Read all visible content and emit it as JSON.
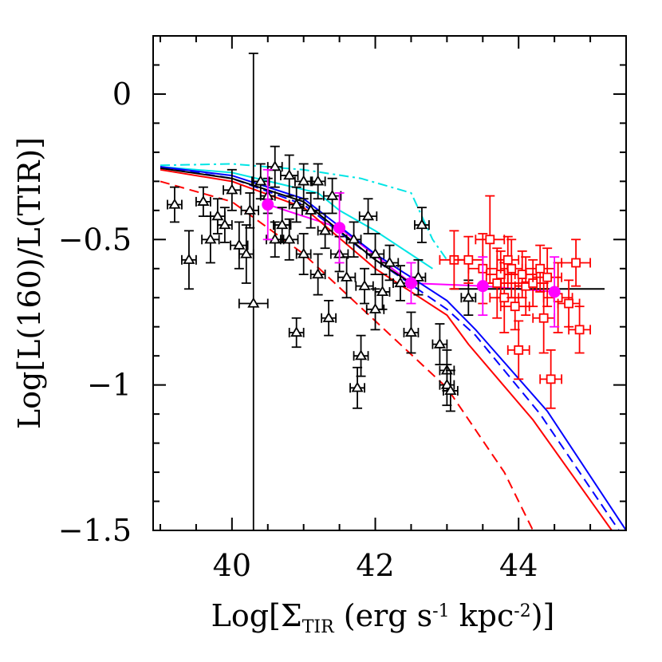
{
  "chart_data": {
    "type": "scatter",
    "xlabel": "Log[Σ_TIR (erg s^-1 kpc^-2)]",
    "xlabel_parts": {
      "pre": "Log[Σ",
      "sub": "TIR",
      "mid1": " (erg s",
      "sup1": "-1",
      "mid2": " kpc",
      "sup2": "-2",
      "post": ")]"
    },
    "ylabel": "Log[L(160)/L(TIR)]",
    "xlim": [
      38.9,
      45.5
    ],
    "ylim": [
      -1.5,
      0.2
    ],
    "x_ticks": [
      40,
      42,
      44
    ],
    "x_tick_labels": [
      "40",
      "42",
      "44"
    ],
    "y_ticks": [
      0,
      -0.5,
      -1,
      -1.5
    ],
    "y_tick_labels": [
      "0",
      "−0.5",
      "−1",
      "−1.5"
    ],
    "grid": false,
    "colors": {
      "black": "#000000",
      "red": "#ff0000",
      "blue": "#0000ff",
      "cyan": "#00e5e5",
      "magenta": "#ff00ff"
    },
    "series": [
      {
        "marker": "triangle",
        "color": "#000000",
        "points": [
          [
            39.2,
            -0.38,
            0.1,
            0.06
          ],
          [
            39.4,
            -0.57,
            0.1,
            0.1
          ],
          [
            39.6,
            -0.37,
            0.1,
            0.05
          ],
          [
            39.7,
            -0.5,
            0.12,
            0.08
          ],
          [
            39.8,
            -0.42,
            0.1,
            0.06
          ],
          [
            39.9,
            -0.45,
            0.1,
            0.06
          ],
          [
            40.0,
            -0.33,
            0.12,
            0.07
          ],
          [
            40.1,
            -0.52,
            0.12,
            0.08
          ],
          [
            40.2,
            -0.55,
            0.1,
            0.1
          ],
          [
            40.25,
            -0.4,
            0.12,
            0.06
          ],
          [
            40.3,
            -0.72,
            0.2,
            0.86
          ],
          [
            40.4,
            -0.3,
            0.12,
            0.06
          ],
          [
            40.5,
            -0.35,
            0.1,
            0.06
          ],
          [
            40.6,
            -0.5,
            0.12,
            0.06
          ],
          [
            40.6,
            -0.25,
            0.1,
            0.07
          ],
          [
            40.7,
            -0.45,
            0.12,
            0.06
          ],
          [
            40.8,
            -0.28,
            0.12,
            0.07
          ],
          [
            40.8,
            -0.5,
            0.12,
            0.07
          ],
          [
            40.9,
            -0.82,
            0.1,
            0.05
          ],
          [
            40.9,
            -0.38,
            0.1,
            0.06
          ],
          [
            41.0,
            -0.3,
            0.12,
            0.06
          ],
          [
            41.0,
            -0.55,
            0.1,
            0.07
          ],
          [
            41.1,
            -0.4,
            0.12,
            0.06
          ],
          [
            41.2,
            -0.62,
            0.1,
            0.07
          ],
          [
            41.2,
            -0.3,
            0.1,
            0.06
          ],
          [
            41.3,
            -0.47,
            0.1,
            0.06
          ],
          [
            41.35,
            -0.77,
            0.1,
            0.06
          ],
          [
            41.4,
            -0.35,
            0.12,
            0.06
          ],
          [
            41.5,
            -0.55,
            0.12,
            0.06
          ],
          [
            41.6,
            -0.63,
            0.12,
            0.07
          ],
          [
            41.7,
            -0.5,
            0.1,
            0.06
          ],
          [
            41.75,
            -1.01,
            0.1,
            0.07
          ],
          [
            41.8,
            -0.9,
            0.1,
            0.07
          ],
          [
            41.85,
            -0.66,
            0.12,
            0.06
          ],
          [
            41.9,
            -0.42,
            0.12,
            0.06
          ],
          [
            42.0,
            -0.74,
            0.12,
            0.07
          ],
          [
            42.0,
            -0.55,
            0.12,
            0.07
          ],
          [
            42.1,
            -0.68,
            0.1,
            0.06
          ],
          [
            42.2,
            -0.58,
            0.12,
            0.06
          ],
          [
            42.35,
            -0.65,
            0.1,
            0.06
          ],
          [
            42.5,
            -0.82,
            0.1,
            0.07
          ],
          [
            42.6,
            -0.63,
            0.1,
            0.06
          ],
          [
            42.65,
            -0.45,
            0.1,
            0.06
          ],
          [
            42.9,
            -0.86,
            0.1,
            0.07
          ],
          [
            43.0,
            -0.95,
            0.1,
            0.07
          ],
          [
            43.0,
            -1.0,
            0.1,
            0.07
          ],
          [
            43.05,
            -1.02,
            0.1,
            0.07
          ],
          [
            43.3,
            -0.7,
            0.1,
            0.06
          ]
        ]
      },
      {
        "marker": "square",
        "color": "#ff0000",
        "points": [
          [
            43.1,
            -0.57,
            0.2,
            0.1
          ],
          [
            43.3,
            -0.57,
            0.2,
            0.08
          ],
          [
            43.5,
            -0.6,
            0.2,
            0.12
          ],
          [
            43.6,
            -0.5,
            0.2,
            0.15
          ],
          [
            43.7,
            -0.65,
            0.15,
            0.12
          ],
          [
            43.75,
            -0.62,
            0.2,
            0.08
          ],
          [
            43.8,
            -0.7,
            0.2,
            0.12
          ],
          [
            43.9,
            -0.6,
            0.15,
            0.1
          ],
          [
            43.95,
            -0.73,
            0.2,
            0.08
          ],
          [
            44.0,
            -0.88,
            0.15,
            0.1
          ],
          [
            44.05,
            -0.62,
            0.2,
            0.08
          ],
          [
            44.1,
            -0.66,
            0.15,
            0.1
          ],
          [
            44.2,
            -0.65,
            0.2,
            0.08
          ],
          [
            44.3,
            -0.6,
            0.2,
            0.08
          ],
          [
            44.35,
            -0.77,
            0.15,
            0.12
          ],
          [
            44.4,
            -0.63,
            0.2,
            0.1
          ],
          [
            44.45,
            -0.98,
            0.15,
            0.1
          ],
          [
            44.55,
            -0.7,
            0.2,
            0.12
          ],
          [
            44.7,
            -0.72,
            0.15,
            0.08
          ],
          [
            44.8,
            -0.58,
            0.2,
            0.08
          ],
          [
            44.85,
            -0.81,
            0.15,
            0.08
          ],
          [
            43.85,
            -0.57,
            0.15,
            0.08
          ]
        ]
      },
      {
        "marker": "filled-circle",
        "color": "#ff00ff",
        "points": [
          [
            40.5,
            -0.38,
            0.0,
            0.12
          ],
          [
            41.5,
            -0.46,
            0.0,
            0.12
          ],
          [
            42.5,
            -0.65,
            0.0,
            0.07
          ],
          [
            43.5,
            -0.66,
            0.0,
            0.1
          ],
          [
            44.5,
            -0.68,
            0.0,
            0.12
          ]
        ]
      }
    ],
    "lines": [
      {
        "color": "#ff00ff",
        "dash": "solid",
        "points": [
          [
            40.5,
            -0.38
          ],
          [
            41.5,
            -0.46
          ],
          [
            42.5,
            -0.65
          ],
          [
            43.5,
            -0.66
          ],
          [
            44.5,
            -0.68
          ]
        ]
      },
      {
        "color": "#000000",
        "dash": "solid",
        "points": [
          [
            43.05,
            -0.67
          ],
          [
            45.2,
            -0.67
          ]
        ]
      },
      {
        "color": "#00e5e5",
        "dash": "dashdot",
        "points": [
          [
            39.0,
            -0.245
          ],
          [
            40.0,
            -0.24
          ],
          [
            41.0,
            -0.26
          ],
          [
            41.8,
            -0.29
          ],
          [
            42.5,
            -0.34
          ],
          [
            42.8,
            -0.5
          ],
          [
            43.0,
            -0.57
          ]
        ]
      },
      {
        "color": "#00e5e5",
        "dash": "solid",
        "points": [
          [
            39.0,
            -0.25
          ],
          [
            40.0,
            -0.27
          ],
          [
            41.2,
            -0.34
          ],
          [
            41.5,
            -0.4
          ],
          [
            42.0,
            -0.47
          ],
          [
            42.8,
            -0.6
          ]
        ]
      },
      {
        "color": "#0000ff",
        "dash": "solid",
        "points": [
          [
            39.0,
            -0.25
          ],
          [
            40.0,
            -0.28
          ],
          [
            41.0,
            -0.36
          ],
          [
            42.0,
            -0.55
          ],
          [
            43.0,
            -0.71
          ],
          [
            43.4,
            -0.81
          ],
          [
            44.4,
            -1.09
          ],
          [
            45.5,
            -1.5
          ]
        ]
      },
      {
        "color": "#0000ff",
        "dash": "dashed",
        "points": [
          [
            39.0,
            -0.25
          ],
          [
            40.0,
            -0.29
          ],
          [
            41.0,
            -0.38
          ],
          [
            42.0,
            -0.57
          ],
          [
            43.0,
            -0.74
          ],
          [
            43.4,
            -0.83
          ],
          [
            44.3,
            -1.1
          ],
          [
            45.4,
            -1.5
          ]
        ]
      },
      {
        "color": "#ff0000",
        "dash": "solid",
        "points": [
          [
            39.0,
            -0.26
          ],
          [
            40.0,
            -0.3
          ],
          [
            41.0,
            -0.39
          ],
          [
            42.0,
            -0.6
          ],
          [
            43.0,
            -0.76
          ],
          [
            43.3,
            -0.86
          ],
          [
            44.2,
            -1.12
          ],
          [
            45.3,
            -1.5
          ]
        ]
      },
      {
        "color": "#000000",
        "dash": "solid",
        "points": [
          [
            39.0,
            -0.255
          ],
          [
            40.0,
            -0.29
          ],
          [
            41.0,
            -0.37
          ],
          [
            42.0,
            -0.57
          ],
          [
            42.5,
            -0.65
          ]
        ]
      },
      {
        "color": "#ff0000",
        "dash": "dashed",
        "points": [
          [
            39.0,
            -0.3
          ],
          [
            40.0,
            -0.37
          ],
          [
            41.0,
            -0.55
          ],
          [
            42.0,
            -0.78
          ],
          [
            43.0,
            -1.01
          ],
          [
            43.8,
            -1.3
          ],
          [
            44.2,
            -1.5
          ]
        ]
      }
    ]
  }
}
